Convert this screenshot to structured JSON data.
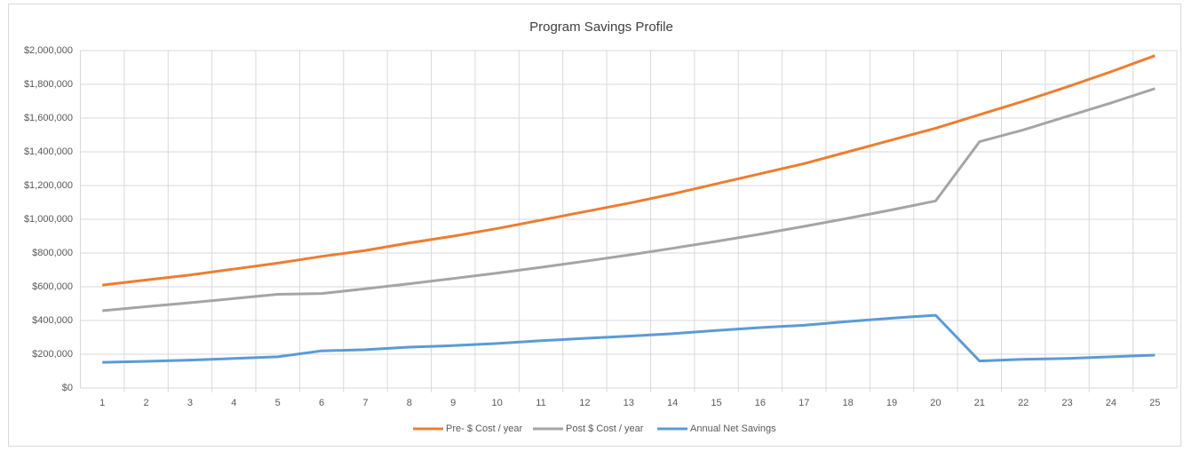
{
  "chart_data": {
    "type": "line",
    "title": "Program Savings Profile",
    "categories": [
      "1",
      "2",
      "3",
      "4",
      "5",
      "6",
      "7",
      "8",
      "9",
      "10",
      "11",
      "12",
      "13",
      "14",
      "15",
      "16",
      "17",
      "18",
      "19",
      "20",
      "21",
      "22",
      "23",
      "24",
      "25"
    ],
    "series": [
      {
        "name": "Pre- $ Cost / year",
        "color": "#ed7d31",
        "values": [
          610000,
          640000,
          670000,
          705000,
          740000,
          780000,
          815000,
          860000,
          900000,
          945000,
          995000,
          1045000,
          1095000,
          1150000,
          1210000,
          1270000,
          1330000,
          1400000,
          1470000,
          1540000,
          1620000,
          1700000,
          1785000,
          1875000,
          1970000
        ]
      },
      {
        "name": "Post $ Cost / year",
        "color": "#a5a5a5",
        "values": [
          458000,
          482000,
          505000,
          530000,
          555000,
          560000,
          588000,
          618000,
          649000,
          681000,
          715000,
          751000,
          788000,
          828000,
          869000,
          912000,
          958000,
          1006000,
          1056000,
          1109000,
          1460000,
          1530000,
          1610000,
          1690000,
          1775000
        ]
      },
      {
        "name": "Annual Net Savings",
        "color": "#5b9bd5",
        "values": [
          152000,
          158000,
          165000,
          175000,
          185000,
          220000,
          227000,
          242000,
          251000,
          264000,
          280000,
          294000,
          307000,
          322000,
          341000,
          358000,
          372000,
          394000,
          414000,
          431000,
          160000,
          170000,
          175000,
          185000,
          195000
        ]
      }
    ],
    "ylim": [
      0,
      2000000
    ],
    "yticks": [
      {
        "value": 0,
        "label": "$0"
      },
      {
        "value": 200000,
        "label": "$200,000"
      },
      {
        "value": 400000,
        "label": "$400,000"
      },
      {
        "value": 600000,
        "label": "$600,000"
      },
      {
        "value": 800000,
        "label": "$800,000"
      },
      {
        "value": 1000000,
        "label": "$1,000,000"
      },
      {
        "value": 1200000,
        "label": "$1,200,000"
      },
      {
        "value": 1400000,
        "label": "$1,400,000"
      },
      {
        "value": 1600000,
        "label": "$1,600,000"
      },
      {
        "value": 1800000,
        "label": "$1,800,000"
      },
      {
        "value": 2000000,
        "label": "$2,000,000"
      }
    ],
    "grid": true,
    "legend": "bottom"
  }
}
